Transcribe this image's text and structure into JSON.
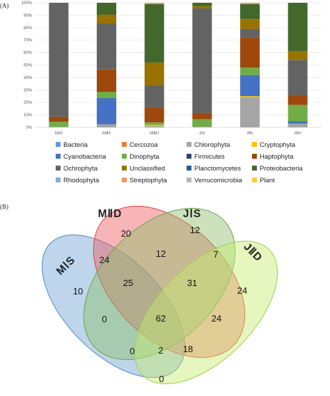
{
  "chart_data": [
    {
      "panel_label": "(A)",
      "type": "bar",
      "stacked": true,
      "categories": [
        "MⅠS",
        "MⅡS",
        "MⅡD",
        "JⅠS",
        "JⅡS",
        "JⅡD"
      ],
      "y_ticks": [
        "0%",
        "10%",
        "20%",
        "30%",
        "40%",
        "50%",
        "60%",
        "70%",
        "80%",
        "90%",
        "100%"
      ],
      "ylim": [
        0,
        100
      ],
      "grid": true,
      "legend_position": "bottom",
      "series": [
        {
          "name": "Bacteria",
          "color": "#5b9bd5",
          "values": [
            0,
            0,
            0,
            0,
            0,
            0
          ]
        },
        {
          "name": "Cercozoa",
          "color": "#ed7d31",
          "values": [
            0,
            0,
            0,
            0,
            0,
            0
          ]
        },
        {
          "name": "Chlorophyta",
          "color": "#a5a5a5",
          "values": [
            0.5,
            2.5,
            1,
            0.5,
            24,
            3
          ]
        },
        {
          "name": "Cryptophyta",
          "color": "#ffc000",
          "values": [
            0,
            0,
            1,
            0,
            1,
            0
          ]
        },
        {
          "name": "Cyanobacteria",
          "color": "#4472c4",
          "values": [
            0,
            21,
            0,
            0,
            17,
            2
          ]
        },
        {
          "name": "Dinophyta",
          "color": "#70ad47",
          "values": [
            4,
            5,
            2,
            6,
            6,
            13
          ]
        },
        {
          "name": "Firmicutes",
          "color": "#264478",
          "values": [
            0,
            0,
            0,
            0,
            0,
            0
          ]
        },
        {
          "name": "Haptophyta",
          "color": "#9e480e",
          "values": [
            4,
            18,
            12,
            5,
            24,
            8
          ]
        },
        {
          "name": "Ochrophyta",
          "color": "#636363",
          "values": [
            91.5,
            37,
            18,
            84,
            7,
            28
          ]
        },
        {
          "name": "Unclassified",
          "color": "#997300",
          "values": [
            0,
            7,
            18,
            2,
            8,
            7
          ]
        },
        {
          "name": "Planctomycetes",
          "color": "#255e91",
          "values": [
            0,
            0,
            0,
            0,
            0,
            0
          ]
        },
        {
          "name": "Proteobacteria",
          "color": "#43682b",
          "values": [
            0,
            9.5,
            47,
            2.5,
            12,
            39
          ]
        },
        {
          "name": "Rhodophyta",
          "color": "#7cafdd",
          "values": [
            0,
            0,
            0,
            0,
            0,
            0
          ]
        },
        {
          "name": "Streptophyta",
          "color": "#f1975a",
          "values": [
            0,
            0,
            1,
            0,
            1,
            0
          ]
        },
        {
          "name": "Verrucomicrobia",
          "color": "#b7b7b7",
          "values": [
            0,
            0,
            0,
            0,
            0,
            0
          ]
        },
        {
          "name": "Plant",
          "color": "#ffcd33",
          "values": [
            0,
            0,
            0,
            0,
            0,
            0
          ]
        }
      ]
    },
    {
      "panel_label": "(B)",
      "type": "venn",
      "sets": [
        {
          "name": "MⅠS",
          "color": "#6fa1d4"
        },
        {
          "name": "MⅡD",
          "color": "#ee5a5f"
        },
        {
          "name": "JⅠS",
          "color": "#8bbf6a"
        },
        {
          "name": "JⅡD",
          "color": "#c5ea6e"
        }
      ],
      "regions": [
        {
          "sets": [
            "MⅠS"
          ],
          "value": 10
        },
        {
          "sets": [
            "MⅡD"
          ],
          "value": 20
        },
        {
          "sets": [
            "JⅠS"
          ],
          "value": 12
        },
        {
          "sets": [
            "JⅡD"
          ],
          "value": 24
        },
        {
          "sets": [
            "MⅠS",
            "MⅡD"
          ],
          "value": 24
        },
        {
          "sets": [
            "MⅡD",
            "JⅠS"
          ],
          "value": 12
        },
        {
          "sets": [
            "JⅠS",
            "JⅡD"
          ],
          "value": 7
        },
        {
          "sets": [
            "MⅠS",
            "JⅡD"
          ],
          "value": 0
        },
        {
          "sets": [
            "MⅠS",
            "JⅠS"
          ],
          "value": 0
        },
        {
          "sets": [
            "MⅡD",
            "JⅡD"
          ],
          "value": 24
        },
        {
          "sets": [
            "MⅠS",
            "MⅡD",
            "JⅠS"
          ],
          "value": 25
        },
        {
          "sets": [
            "MⅡD",
            "JⅠS",
            "JⅡD"
          ],
          "value": 31
        },
        {
          "sets": [
            "MⅠS",
            "JⅠS",
            "JⅡD"
          ],
          "value": 2
        },
        {
          "sets": [
            "MⅠS",
            "MⅡD",
            "JⅡD"
          ],
          "value": 18
        },
        {
          "sets": [
            "MⅠS",
            "MⅡD",
            "JⅠS",
            "JⅡD"
          ],
          "value": 62
        }
      ]
    }
  ]
}
